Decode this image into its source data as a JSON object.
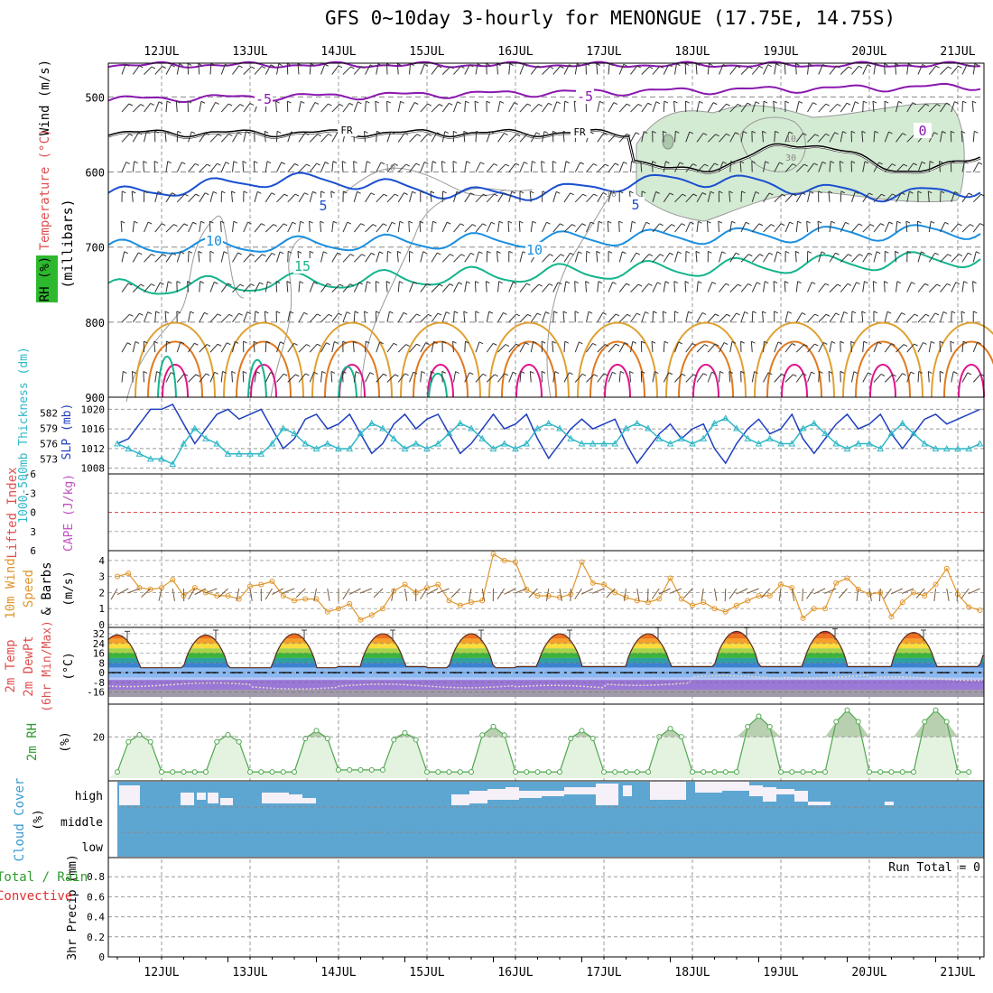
{
  "title": "GFS 0~10day 3-hourly for MENONGUE (17.75E, 14.75S)",
  "dates": [
    "12JUL",
    "13JUL",
    "14JUL",
    "15JUL",
    "16JUL",
    "17JUL",
    "18JUL",
    "19JUL",
    "20JUL",
    "21JUL"
  ],
  "colors": {
    "grid": "#999999",
    "wind_barb": "#333333",
    "freezing": "#000000",
    "slp": "#1f3fbf",
    "thickness": "#2fb7c7",
    "wind10": "#e0962c",
    "rh": "#4ea84e",
    "cloud": "#5ea6d2",
    "cape_zero": "#e05050"
  },
  "panels": {
    "upper": {
      "left_labels": {
        "wind": "Wind (m/s)",
        "temperature": "Temperature (°C)",
        "rh": "RH (%)",
        "millibars": "(millibars)"
      },
      "y_ticks": [
        "500",
        "600",
        "700",
        "800",
        "900"
      ],
      "isotherm_labels": [
        "-5",
        "-5",
        "0",
        "5",
        "5",
        "10",
        "10",
        "15"
      ],
      "rh_labels": [
        "10",
        "10",
        "30",
        "10"
      ],
      "freezing_label": "FR"
    },
    "slp": {
      "left_labels": {
        "thickness": "1000-500mb Thickness (dm)",
        "slp": "SLP (mb)"
      },
      "thickness_ticks": [
        "582",
        "579",
        "576",
        "573"
      ],
      "slp_ticks": [
        "1020",
        "1016",
        "1012",
        "1008"
      ]
    },
    "cape": {
      "left_labels": {
        "li": "Lifted Index",
        "cape": "CAPE (J/kg)"
      },
      "li_ticks": [
        "-6",
        "-3",
        "0",
        "3",
        "6"
      ]
    },
    "wind10": {
      "left_labels": {
        "main": "10m Wind",
        "speed": "Speed",
        "barbs": "& Barbs",
        "unit": "(m/s)"
      },
      "ticks": [
        "4",
        "3",
        "2",
        "1",
        "0"
      ]
    },
    "temp": {
      "left_labels": {
        "a": "2m Temp",
        "b": "2m DewPt",
        "c": "(6hr Min/Max)",
        "unit": "(°C)"
      },
      "ticks": [
        "32",
        "24",
        "16",
        "8",
        "0",
        "-8",
        "-16"
      ]
    },
    "rh2m": {
      "left_labels": {
        "main": "2m RH",
        "unit": "(%)"
      },
      "ticks": [
        "20"
      ]
    },
    "cloud": {
      "left_labels": {
        "main": "Cloud Cover",
        "unit": "(%)"
      },
      "levels": [
        "high",
        "middle",
        "low"
      ]
    },
    "precip": {
      "left_labels": {
        "total": "Total / Rain",
        "conv": "Convective",
        "main": "3hr Precip (mm)"
      },
      "ticks": [
        "0.8",
        "0.6",
        "0.4",
        "0.2",
        "0"
      ],
      "run_total": "Run Total = 0"
    }
  },
  "chart_data": [
    {
      "type": "line",
      "name_panel": "SLP and 1000-500mb thickness",
      "x": [
        "11JUL 12",
        "11JUL 15",
        "11JUL 18",
        "11JUL 21",
        "12JUL 00",
        "12JUL 03",
        "12JUL 06",
        "12JUL 09",
        "12JUL 12",
        "12JUL 15",
        "12JUL 18",
        "12JUL 21",
        "13JUL 00",
        "13JUL 03",
        "13JUL 06",
        "13JUL 09",
        "13JUL 12",
        "13JUL 15",
        "13JUL 18",
        "13JUL 21",
        "14JUL 00",
        "14JUL 03",
        "14JUL 06",
        "14JUL 09",
        "14JUL 12",
        "14JUL 15",
        "14JUL 18",
        "14JUL 21",
        "15JUL 00",
        "15JUL 03",
        "15JUL 06",
        "15JUL 09",
        "15JUL 12",
        "15JUL 15",
        "15JUL 18",
        "15JUL 21",
        "16JUL 00",
        "16JUL 03",
        "16JUL 06",
        "16JUL 09",
        "16JUL 12",
        "16JUL 15",
        "16JUL 18",
        "16JUL 21",
        "17JUL 00",
        "17JUL 03",
        "17JUL 06",
        "17JUL 09",
        "17JUL 12",
        "17JUL 15",
        "17JUL 18",
        "17JUL 21",
        "18JUL 00",
        "18JUL 03",
        "18JUL 06",
        "18JUL 09",
        "18JUL 12",
        "18JUL 15",
        "18JUL 18",
        "18JUL 21",
        "19JUL 00",
        "19JUL 03",
        "19JUL 06",
        "19JUL 09",
        "19JUL 12",
        "19JUL 15",
        "19JUL 18",
        "19JUL 21",
        "20JUL 00",
        "20JUL 03",
        "20JUL 06",
        "20JUL 09",
        "20JUL 12",
        "20JUL 15",
        "20JUL 18",
        "20JUL 21",
        "21JUL 00",
        "21JUL 03",
        "21JUL 06"
      ],
      "series": [
        {
          "name": "SLP (mb)",
          "values": [
            1013,
            1014,
            1017,
            1020,
            1020,
            1021,
            1017,
            1013,
            1016,
            1019,
            1020,
            1018,
            1019,
            1020,
            1016,
            1012,
            1014,
            1018,
            1019,
            1016,
            1017,
            1019,
            1015,
            1011,
            1013,
            1017,
            1019,
            1016,
            1018,
            1019,
            1015,
            1011,
            1013,
            1016,
            1019,
            1016,
            1017,
            1019,
            1014,
            1010,
            1013,
            1016,
            1018,
            1016,
            1017,
            1018,
            1013,
            1009,
            1012,
            1015,
            1017,
            1014,
            1016,
            1017,
            1012,
            1009,
            1013,
            1016,
            1018,
            1015,
            1016,
            1019,
            1014,
            1011,
            1014,
            1017,
            1019,
            1016,
            1017,
            1019,
            1015,
            1012,
            1015,
            1018,
            1019,
            1017,
            1018,
            1019,
            1020
          ]
        },
        {
          "name": "1000-500mb Thickness (dm)",
          "values": [
            576,
            575,
            574,
            573,
            573,
            572,
            576,
            579,
            577,
            576,
            574,
            574,
            574,
            574,
            576,
            579,
            578,
            576,
            575,
            576,
            575,
            575,
            578,
            580,
            579,
            577,
            575,
            576,
            575,
            576,
            578,
            580,
            579,
            577,
            575,
            576,
            575,
            576,
            579,
            580,
            579,
            577,
            576,
            576,
            576,
            576,
            579,
            580,
            579,
            577,
            576,
            577,
            576,
            577,
            580,
            581,
            579,
            577,
            576,
            577,
            576,
            576,
            579,
            580,
            578,
            576,
            575,
            576,
            576,
            575,
            578,
            580,
            578,
            576,
            575,
            575,
            575,
            575,
            576
          ]
        }
      ]
    },
    {
      "type": "line",
      "name_panel": "10m Wind Speed",
      "ylim": [
        0,
        4.5
      ],
      "values": [
        3.0,
        3.2,
        2.3,
        2.2,
        2.3,
        2.8,
        1.8,
        2.3,
        2.0,
        1.8,
        1.8,
        1.6,
        2.4,
        2.5,
        2.7,
        1.8,
        1.5,
        1.6,
        1.6,
        0.8,
        1.0,
        1.3,
        0.3,
        0.6,
        1.0,
        2.1,
        2.5,
        2.0,
        2.3,
        2.5,
        1.5,
        1.2,
        1.4,
        1.5,
        4.4,
        4.0,
        3.9,
        2.2,
        1.8,
        1.8,
        1.7,
        1.9,
        3.9,
        2.6,
        2.5,
        2.0,
        1.7,
        1.5,
        1.4,
        1.6,
        2.9,
        1.6,
        1.2,
        1.4,
        1.0,
        0.8,
        1.2,
        1.5,
        1.8,
        1.8,
        2.5,
        2.3,
        0.4,
        1.0,
        1.0,
        2.6,
        2.9,
        2.2,
        1.9,
        2.0,
        0.5,
        1.4,
        2.0,
        1.8,
        2.5,
        3.5,
        1.9,
        1.1,
        0.9,
        0.2,
        0.5,
        1.9
      ]
    },
    {
      "type": "area",
      "name_panel": "2m Temp",
      "ylim": [
        -20,
        35
      ],
      "daily_max": [
        31,
        32,
        32,
        32,
        32,
        32,
        34,
        34,
        33,
        32
      ],
      "daily_min": [
        4,
        4,
        5,
        4,
        5,
        5,
        5,
        5,
        5,
        5
      ],
      "dewpoint_mean": [
        -10,
        -12,
        -11,
        -11,
        -12,
        -9,
        -4,
        -3,
        -5,
        -5
      ]
    },
    {
      "type": "area",
      "name_panel": "2m RH",
      "ylim": [
        0,
        35
      ],
      "daily_max": [
        21,
        23,
        22,
        25,
        23,
        24,
        30,
        33,
        33,
        30
      ],
      "daily_min": [
        3,
        3,
        4,
        3,
        3,
        3,
        3,
        3,
        3,
        3
      ]
    },
    {
      "type": "bar",
      "name_panel": "Cloud Cover (high level)",
      "levels": [
        "high",
        "middle",
        "low"
      ],
      "high_cover_note": "patchy high cloud on 12-13 JUL and 17-20 JUL"
    },
    {
      "type": "bar",
      "name_panel": "3hr Precip (mm)",
      "ylim": [
        0,
        1.0
      ],
      "run_total": 0
    }
  ]
}
